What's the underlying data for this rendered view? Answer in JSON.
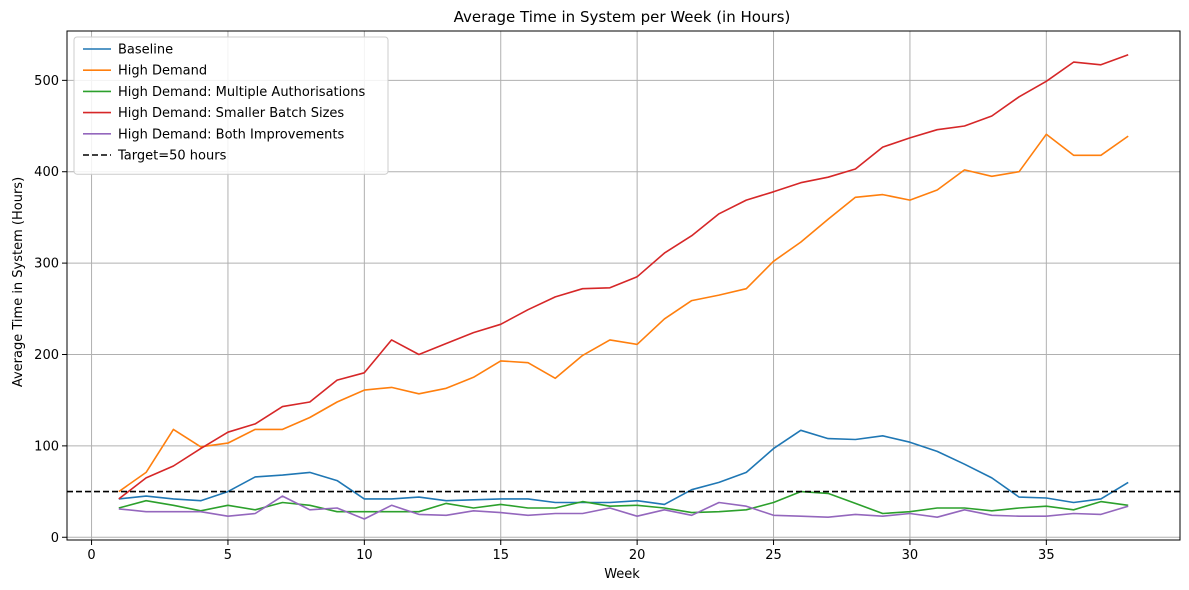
{
  "chart_data": {
    "type": "line",
    "title": "Average Time in System per Week (in Hours)",
    "xlabel": "Week",
    "ylabel": "Average Time in System (Hours)",
    "xlim": [
      -0.9,
      39.9
    ],
    "ylim": [
      -3,
      554
    ],
    "xticks": [
      0,
      5,
      10,
      15,
      20,
      25,
      30,
      35
    ],
    "yticks": [
      0,
      100,
      200,
      300,
      400,
      500
    ],
    "grid": true,
    "legend_position": "top-left",
    "x": [
      1,
      2,
      3,
      4,
      5,
      6,
      7,
      8,
      9,
      10,
      11,
      12,
      13,
      14,
      15,
      16,
      17,
      18,
      19,
      20,
      21,
      22,
      23,
      24,
      25,
      26,
      27,
      28,
      29,
      30,
      31,
      32,
      33,
      34,
      35,
      36,
      37,
      38
    ],
    "series": [
      {
        "name": "Baseline",
        "color": "#1f77b4",
        "values": [
          42,
          45,
          42,
          40,
          50,
          66,
          68,
          71,
          62,
          42,
          42,
          44,
          40,
          41,
          42,
          42,
          38,
          38,
          38,
          40,
          36,
          52,
          60,
          71,
          97,
          117,
          108,
          107,
          111,
          104,
          94,
          80,
          65,
          44,
          43,
          38,
          42,
          60
        ]
      },
      {
        "name": "High Demand",
        "color": "#ff7f0e",
        "values": [
          50,
          71,
          118,
          99,
          103,
          118,
          118,
          131,
          148,
          161,
          164,
          157,
          163,
          175,
          193,
          191,
          174,
          199,
          216,
          211,
          239,
          259,
          265,
          272,
          302,
          323,
          348,
          372,
          375,
          369,
          380,
          402,
          395,
          400,
          441,
          418,
          418,
          439
        ]
      },
      {
        "name": "High Demand: Multiple Authorisations",
        "color": "#2ca02c",
        "values": [
          32,
          40,
          35,
          29,
          35,
          30,
          38,
          35,
          28,
          28,
          28,
          28,
          37,
          32,
          36,
          32,
          32,
          39,
          34,
          35,
          32,
          27,
          28,
          30,
          38,
          50,
          48,
          37,
          26,
          28,
          32,
          32,
          29,
          32,
          34,
          30,
          39,
          35
        ]
      },
      {
        "name": "High Demand: Smaller Batch Sizes",
        "color": "#d62728",
        "values": [
          42,
          65,
          78,
          97,
          115,
          124,
          143,
          148,
          172,
          180,
          216,
          200,
          212,
          224,
          233,
          249,
          263,
          272,
          273,
          285,
          311,
          330,
          354,
          369,
          378,
          388,
          394,
          403,
          427,
          437,
          446,
          450,
          461,
          482,
          499,
          520,
          517,
          528
        ]
      },
      {
        "name": "High Demand: Both Improvements",
        "color": "#9467bd",
        "values": [
          31,
          28,
          28,
          28,
          23,
          26,
          45,
          30,
          32,
          20,
          35,
          25,
          24,
          29,
          27,
          24,
          26,
          26,
          32,
          23,
          30,
          24,
          38,
          34,
          24,
          23,
          22,
          25,
          23,
          26,
          22,
          30,
          24,
          23,
          23,
          26,
          25,
          34
        ]
      }
    ],
    "target_line": {
      "label": "Target=50 hours",
      "value": 50,
      "color": "#000000",
      "style": "dashed"
    }
  }
}
